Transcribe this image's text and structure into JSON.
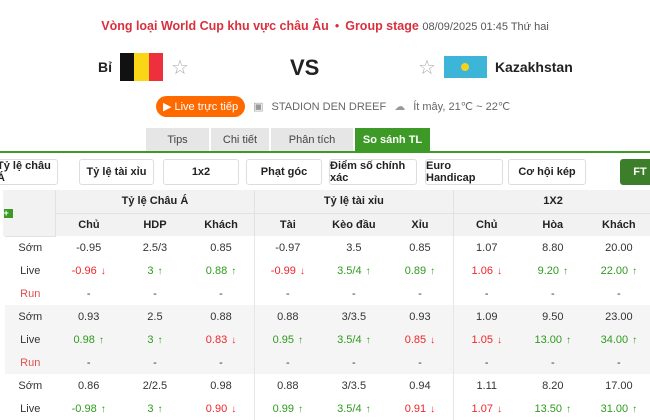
{
  "header": {
    "competition": "Vòng loại World Cup khu vực châu Âu",
    "stage": "Group stage",
    "datetime": "08/09/2025 01:45 Thứ hai"
  },
  "match": {
    "home": "Bỉ",
    "away": "Kazakhstan",
    "vs": "VS",
    "live_label": "Live trực tiếp",
    "stadium": "STADION DEN DREEF",
    "weather": "Ít mây, 21℃ ~ 22℃"
  },
  "colors": {
    "accent": "#3d9a27",
    "live": "#ff6a00",
    "title": "#d9303e",
    "up": "#2e9b1e",
    "down": "#f0252a"
  },
  "tabs": [
    {
      "label": "Tips"
    },
    {
      "label": "Chi tiết"
    },
    {
      "label": "Phân tích"
    },
    {
      "label": "So sánh TL",
      "active": true
    }
  ],
  "filters": [
    {
      "label": "Tỷ lệ châu Á"
    },
    {
      "label": "Tỷ lệ tài xỉu"
    },
    {
      "label": "1x2"
    },
    {
      "label": "Phạt góc"
    },
    {
      "label": "Điểm số chính xác"
    },
    {
      "label": "Euro Handicap"
    },
    {
      "label": "Cơ hội kép"
    },
    {
      "label": "FT"
    }
  ],
  "table": {
    "groups": [
      "Tỷ lệ Châu Á",
      "Tỷ lệ tài xỉu",
      "1X2"
    ],
    "columns": [
      "Chủ",
      "HDP",
      "Khách",
      "Tài",
      "Kèo đầu",
      "Xỉu",
      "Chủ",
      "Hòa",
      "Khách"
    ],
    "bookmakers": [
      {
        "rows": [
          {
            "label": "Sớm",
            "cells": [
              [
                "-0.95",
                ""
              ],
              [
                "2.5/3",
                ""
              ],
              [
                "0.85",
                ""
              ],
              [
                "-0.97",
                ""
              ],
              [
                "3.5",
                ""
              ],
              [
                "0.85",
                ""
              ],
              [
                "1.07",
                ""
              ],
              [
                "8.80",
                ""
              ],
              [
                "20.00",
                ""
              ]
            ]
          },
          {
            "label": "Live",
            "cells": [
              [
                "-0.96",
                "down"
              ],
              [
                "3",
                "up"
              ],
              [
                "0.88",
                "up"
              ],
              [
                "-0.99",
                "down"
              ],
              [
                "3.5/4",
                "up"
              ],
              [
                "0.89",
                "up"
              ],
              [
                "1.06",
                "down"
              ],
              [
                "9.20",
                "up"
              ],
              [
                "22.00",
                "up"
              ]
            ]
          },
          {
            "label": "Run",
            "cells": [
              [
                "-",
                ""
              ],
              [
                "-",
                ""
              ],
              [
                "-",
                ""
              ],
              [
                "-",
                ""
              ],
              [
                "-",
                ""
              ],
              [
                "-",
                ""
              ],
              [
                "-",
                ""
              ],
              [
                "-",
                ""
              ],
              [
                "-",
                ""
              ]
            ]
          }
        ]
      },
      {
        "rows": [
          {
            "label": "Sớm",
            "cells": [
              [
                "0.93",
                ""
              ],
              [
                "2.5",
                ""
              ],
              [
                "0.88",
                ""
              ],
              [
                "0.88",
                ""
              ],
              [
                "3/3.5",
                ""
              ],
              [
                "0.93",
                ""
              ],
              [
                "1.09",
                ""
              ],
              [
                "9.50",
                ""
              ],
              [
                "23.00",
                ""
              ]
            ]
          },
          {
            "label": "Live",
            "cells": [
              [
                "0.98",
                "up"
              ],
              [
                "3",
                "up"
              ],
              [
                "0.83",
                "down"
              ],
              [
                "0.95",
                "up"
              ],
              [
                "3.5/4",
                "up"
              ],
              [
                "0.85",
                "down"
              ],
              [
                "1.05",
                "down"
              ],
              [
                "13.00",
                "up"
              ],
              [
                "34.00",
                "up"
              ]
            ]
          },
          {
            "label": "Run",
            "cells": [
              [
                "-",
                ""
              ],
              [
                "-",
                ""
              ],
              [
                "-",
                ""
              ],
              [
                "-",
                ""
              ],
              [
                "-",
                ""
              ],
              [
                "-",
                ""
              ],
              [
                "-",
                ""
              ],
              [
                "-",
                ""
              ],
              [
                "-",
                ""
              ]
            ]
          }
        ]
      },
      {
        "rows": [
          {
            "label": "Sớm",
            "cells": [
              [
                "0.86",
                ""
              ],
              [
                "2/2.5",
                ""
              ],
              [
                "0.98",
                ""
              ],
              [
                "0.88",
                ""
              ],
              [
                "3/3.5",
                ""
              ],
              [
                "0.94",
                ""
              ],
              [
                "1.11",
                ""
              ],
              [
                "8.20",
                ""
              ],
              [
                "17.00",
                ""
              ]
            ]
          },
          {
            "label": "Live",
            "cells": [
              [
                "-0.98",
                "up"
              ],
              [
                "3",
                "up"
              ],
              [
                "0.90",
                "down"
              ],
              [
                "0.99",
                "up"
              ],
              [
                "3.5/4",
                "up"
              ],
              [
                "0.91",
                "down"
              ],
              [
                "1.07",
                "down"
              ],
              [
                "13.50",
                "up"
              ],
              [
                "31.00",
                "up"
              ]
            ]
          }
        ]
      }
    ]
  }
}
